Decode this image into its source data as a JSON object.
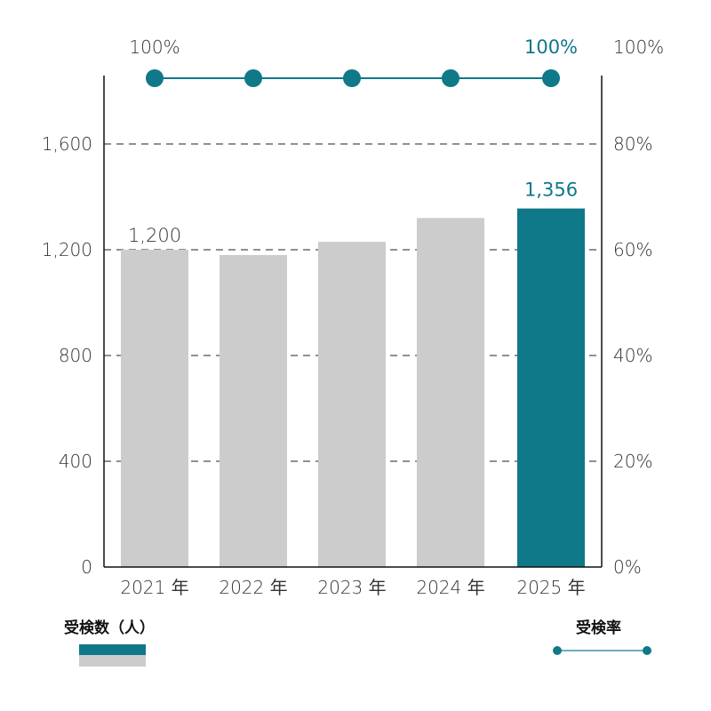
{
  "chart_data": {
    "type": "bar",
    "categories": [
      "2021 年",
      "2022 年",
      "2023 年",
      "2024 年",
      "2025 年"
    ],
    "series": [
      {
        "name": "受検数（人）",
        "values": [
          1200,
          1180,
          1230,
          1320,
          1356
        ],
        "axis": "left"
      },
      {
        "name": "受検率",
        "type": "line",
        "values": [
          100,
          100,
          100,
          100,
          100
        ],
        "axis": "right",
        "unit": "%"
      }
    ],
    "data_labels": {
      "first_bar": "1,200",
      "last_bar": "1,356",
      "first_rate": "100%",
      "last_rate": "100%"
    },
    "ylim": [
      0,
      1600
    ],
    "yticks": [
      "0",
      "400",
      "800",
      "1,200",
      "1,600"
    ],
    "y2lim": [
      0,
      100
    ],
    "y2ticks": [
      "0%",
      "20%",
      "40%",
      "60%",
      "80%",
      "100%"
    ],
    "grid": "horizontal dashed",
    "legend": "bottom",
    "colors": {
      "highlight": "#0f7889",
      "bar": "#cccccc",
      "line": "#0f7889"
    }
  },
  "legend": {
    "bars_label": "受検数（人）",
    "line_label": "受検率"
  }
}
